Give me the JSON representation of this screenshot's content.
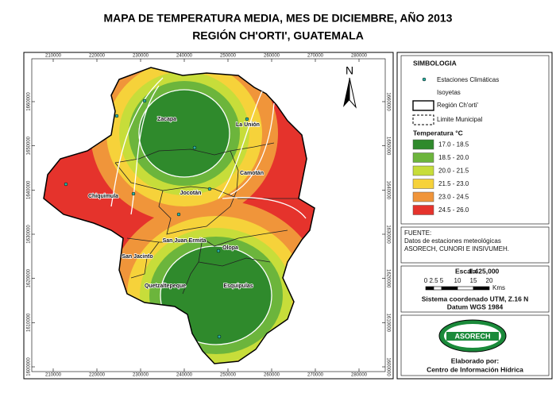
{
  "title": [
    "MAPA DE TEMPERATURA MEDIA, MES DE DICIEMBRE, AÑO 2013",
    "REGIÓN CH'ORTI', GUATEMALA"
  ],
  "map": {
    "north": "N",
    "x_ticks": [
      210000,
      220000,
      230000,
      240000,
      250000,
      260000,
      270000,
      280000
    ],
    "y_ticks": [
      1600000,
      1610000,
      1620000,
      1630000,
      1640000,
      1650000,
      1660000
    ],
    "places": [
      "Zacapa",
      "La Unión",
      "Camotán",
      "Chiquimula",
      "Jocotán",
      "San Juan Ermita",
      "San Jacinto",
      "Olopa",
      "Quetzaltepeque",
      "Esquipulas"
    ]
  },
  "legend": {
    "title": "SIMBOLOGIA",
    "stations": "Estaciones Climáticas",
    "isoyets": "Isoyetas",
    "region": "Región Ch'orti'",
    "limit": "Limite Municipal",
    "temperature_title": "Temperatura °C",
    "classes": [
      {
        "label": "17.0 - 18.5",
        "color": "#2f8a2c"
      },
      {
        "label": "18.5 - 20.0",
        "color": "#6cb53c"
      },
      {
        "label": "20.0 - 21.5",
        "color": "#c7dd3a"
      },
      {
        "label": "21.5 - 23.0",
        "color": "#f6d23a"
      },
      {
        "label": "23.0 - 24.5",
        "color": "#f0953a"
      },
      {
        "label": "24.5 - 26.0",
        "color": "#e5332c"
      }
    ]
  },
  "source": {
    "label": "FUENTE:",
    "lines": [
      "Datos de estaciones meteológicas",
      "ASORECH, CUNORI E INSIVUMEH."
    ]
  },
  "scale": {
    "label": "Escala",
    "value": "1:425,000",
    "bar_labels": [
      "0",
      "2.5",
      "5",
      "10",
      "15",
      "20"
    ],
    "unit": "Kms",
    "system": "Sistema coordenado UTM, Z.16 N",
    "datum": "Datum WGS 1984"
  },
  "credits": {
    "logo": "ASORECH",
    "label": "Elaborado por:",
    "org": "Centro de Información Hídrica"
  }
}
